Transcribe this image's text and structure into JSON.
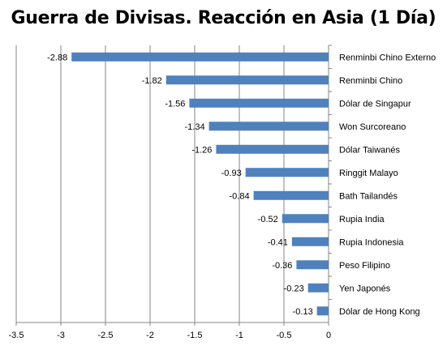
{
  "chart_data": {
    "type": "bar",
    "orientation": "horizontal",
    "title": "Guerra de Divisas. Reacción en Asia (1 Día)",
    "xlabel": "",
    "ylabel": "",
    "xlim": [
      -3.5,
      0
    ],
    "xticks": [
      "-3.5",
      "-3",
      "-2.5",
      "-2",
      "-1.5",
      "-1",
      "-0.5",
      "0"
    ],
    "grid": true,
    "legend": "none",
    "bar_color": "#4F81BD",
    "categories": [
      "Renminbi Chino Externo",
      "Renminbi Chino",
      "Dólar de Singapur",
      "Won Surcoreano",
      "Dólar Taiwanés",
      "Ringgit Malayo",
      "Bath Tailandés",
      "Rupia India",
      "Rupia Indonesia",
      "Peso Filipino",
      "Yen Japonés",
      "Dólar de Hong Kong"
    ],
    "values": [
      -2.88,
      -1.82,
      -1.56,
      -1.34,
      -1.26,
      -0.93,
      -0.84,
      -0.52,
      -0.41,
      -0.36,
      -0.23,
      -0.13
    ],
    "data_labels": [
      "-2.88",
      "-1.82",
      "-1.56",
      "-1.34",
      "-1.26",
      "-0.93",
      "-0.84",
      "-0.52",
      "-0.41",
      "-0.36",
      "-0.23",
      "-0.13"
    ]
  }
}
